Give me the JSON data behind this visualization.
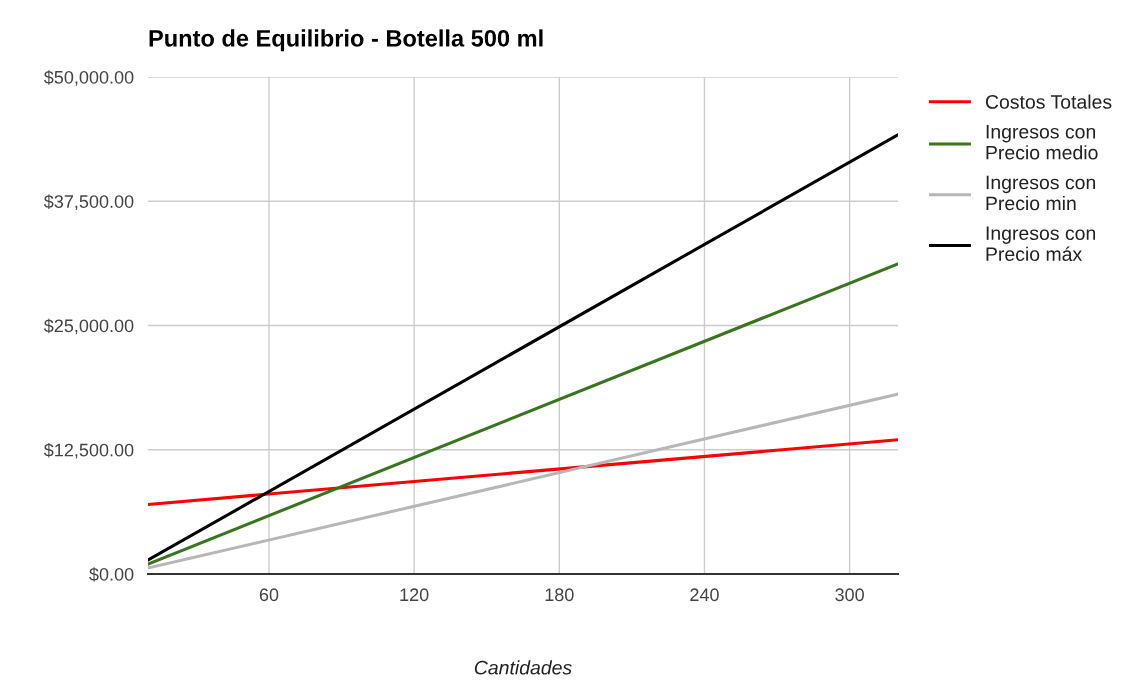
{
  "chart_data": {
    "type": "line",
    "title": "Punto de Equilibrio - Botella 500 ml",
    "xlabel": "Cantidades",
    "x": [
      10,
      320
    ],
    "series": [
      {
        "name": "Costos Totales",
        "color": "#ff0000",
        "values": [
          7000,
          13500
        ]
      },
      {
        "name": "Ingresos con\nPrecio medio",
        "color": "#38761d",
        "values": [
          1000,
          31200
        ]
      },
      {
        "name": "Ingresos con\nPrecio min",
        "color": "#b7b7b7",
        "values": [
          600,
          18100
        ]
      },
      {
        "name": "Ingresos con\nPrecio máx",
        "color": "#000000",
        "values": [
          1400,
          44200
        ]
      }
    ],
    "xlim": [
      10,
      320
    ],
    "xticks": [
      60,
      120,
      180,
      240,
      300
    ],
    "ylim": [
      0,
      50000
    ],
    "yticks": [
      {
        "value": 0,
        "label": "$0.00"
      },
      {
        "value": 12500,
        "label": "$12,500.00"
      },
      {
        "value": 25000,
        "label": "$25,000.00"
      },
      {
        "value": 37500,
        "label": "$37,500.00"
      },
      {
        "value": 50000,
        "label": "$50,000.00"
      }
    ],
    "grid": true,
    "legend": "right",
    "marker": "none",
    "line_style": "solid"
  }
}
